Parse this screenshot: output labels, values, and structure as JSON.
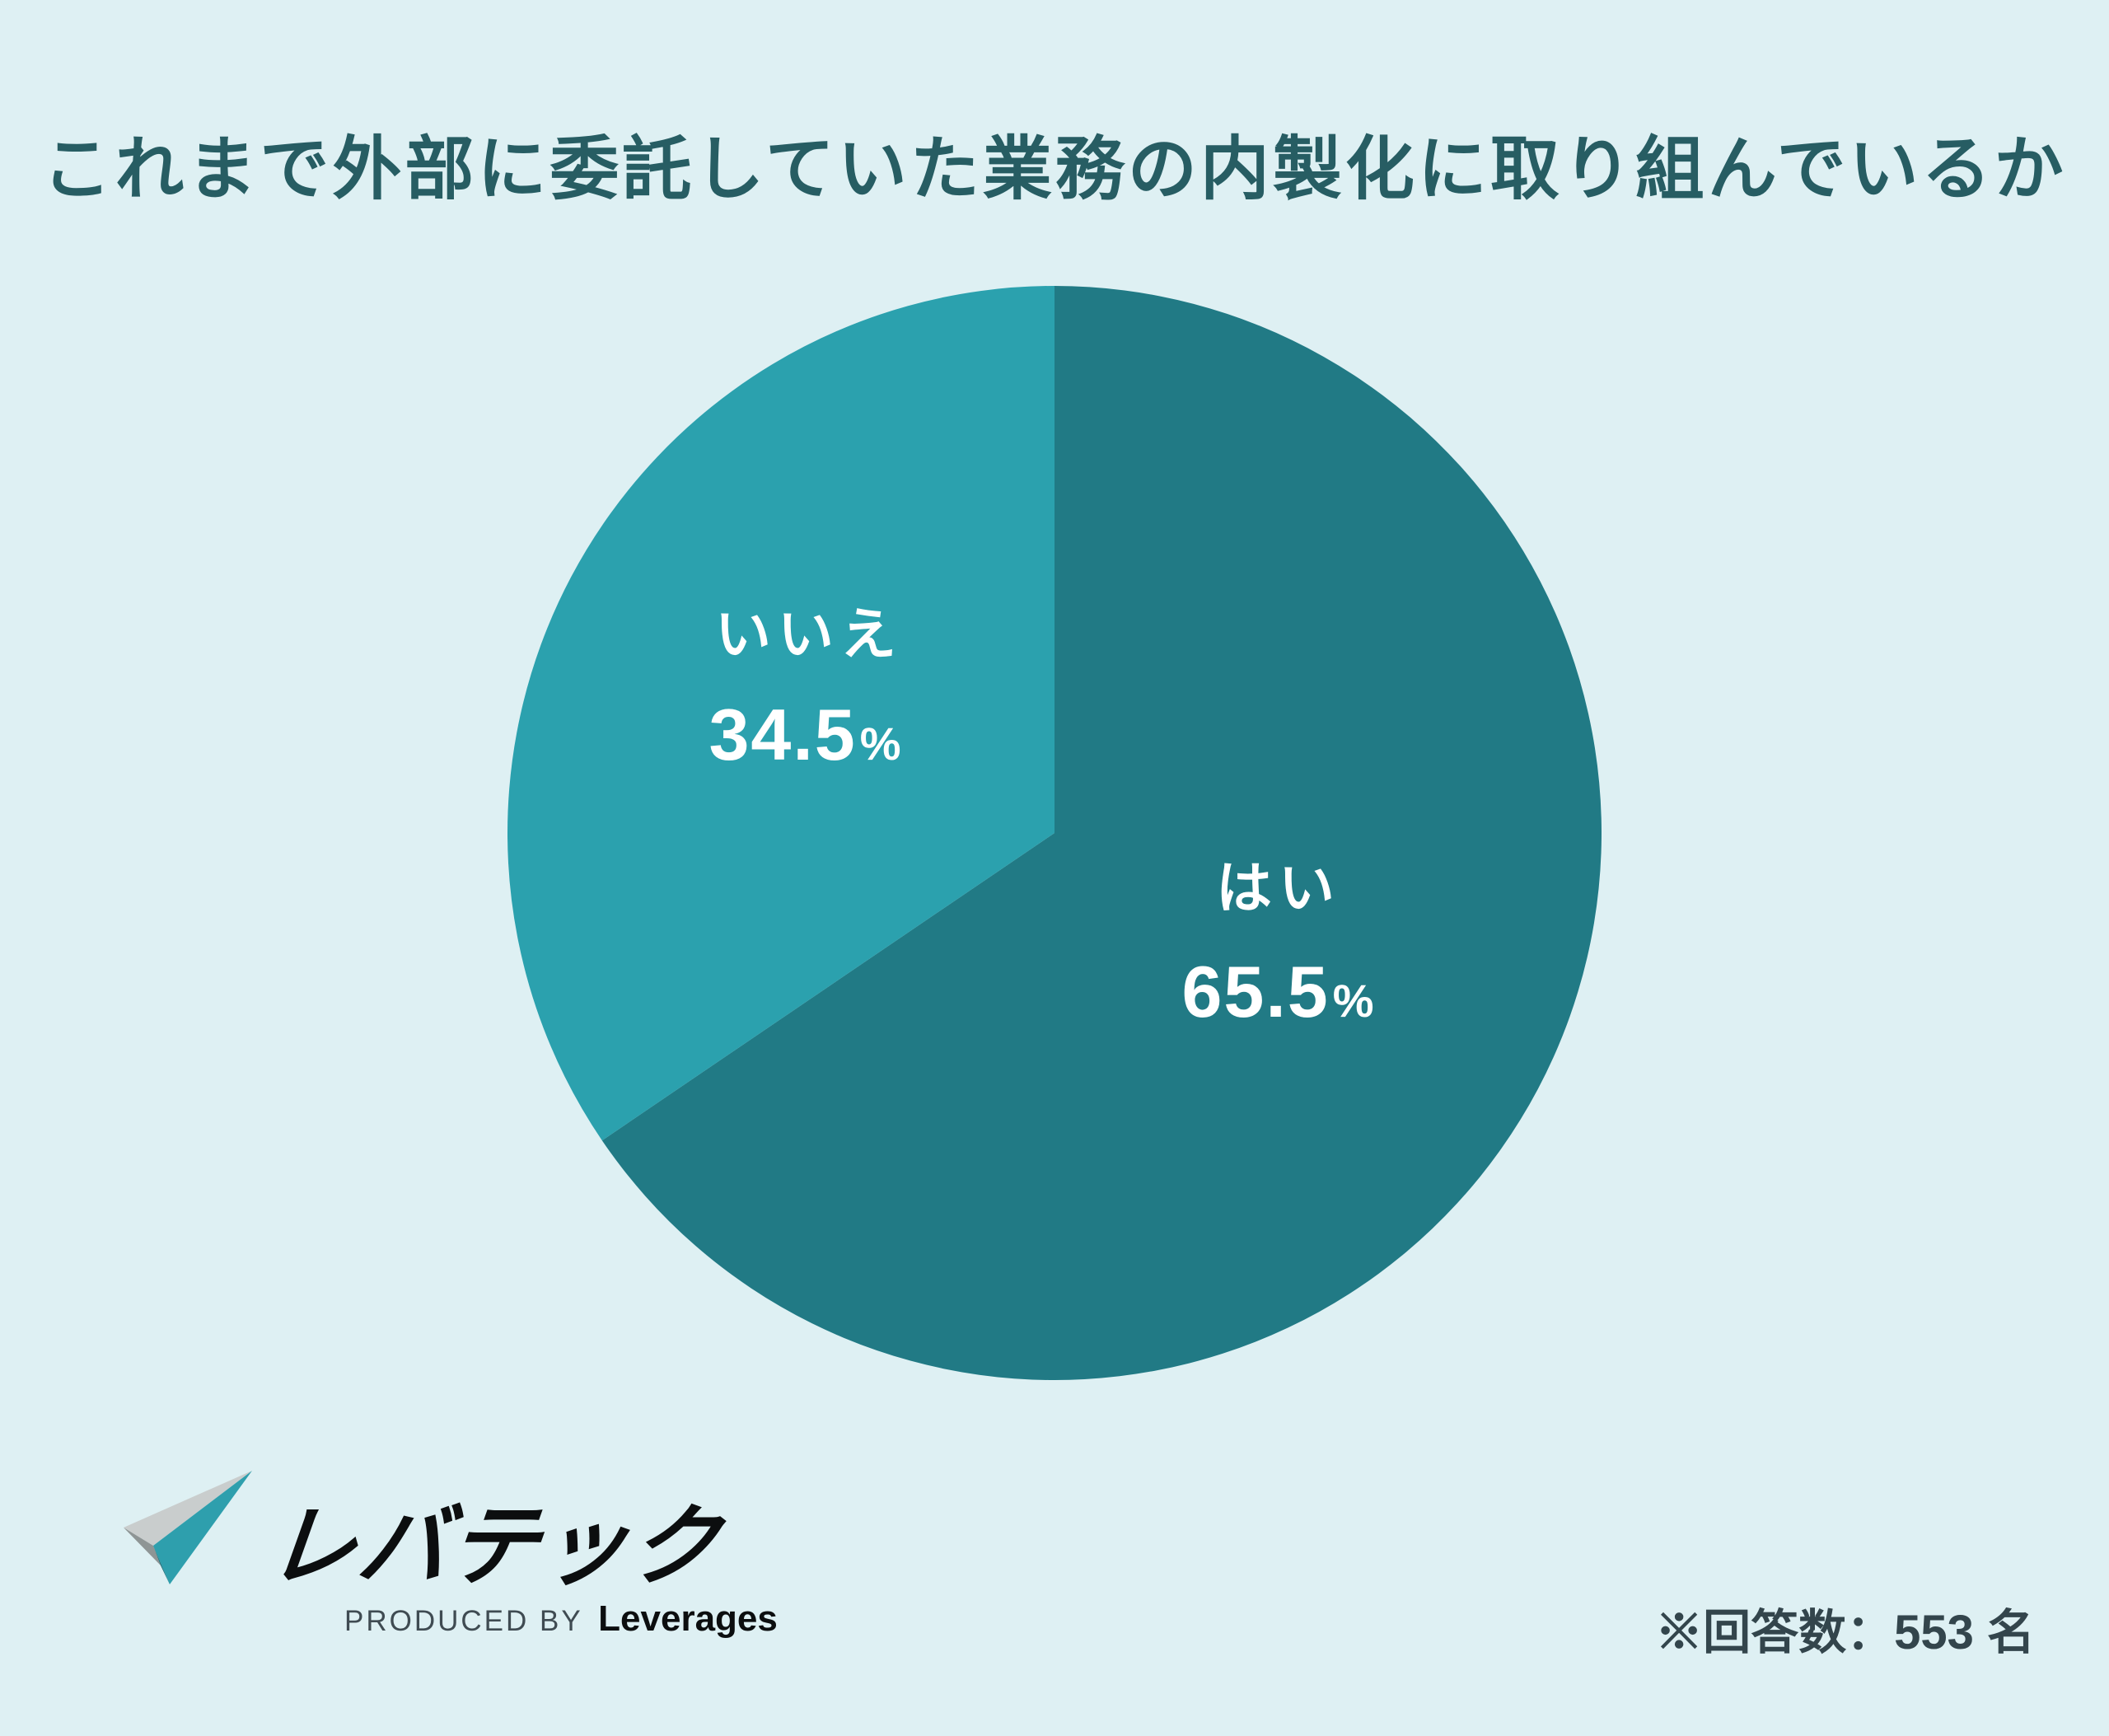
{
  "title": "これまで外部に委託していた業務の内製化に取り組んでいるか",
  "chart_data": {
    "type": "pie",
    "title": "これまで外部に委託していた業務の内製化に取り組んでいるか",
    "unit": "%",
    "start_angle_deg": 0,
    "direction": "clockwise",
    "slices": [
      {
        "label": "はい",
        "value": 65.5,
        "color": "#217A85"
      },
      {
        "label": "いいえ",
        "value": 34.5,
        "color": "#2BA1AE"
      }
    ],
    "legend_position": "none",
    "data_labels": "inside"
  },
  "footer": {
    "logo_text": "レバテック",
    "produced_by": "PRODUCED BY",
    "company": "Leverages",
    "note": "※回答数：553 名"
  },
  "colors": {
    "background": "#DEF0F3",
    "title_text": "#275D63",
    "slice_yes": "#217A85",
    "slice_no": "#2BA1AE",
    "pie_label_text": "#FFFFFF",
    "note_text": "#33454C",
    "logo_face_light_gray": "#C9CDCD",
    "logo_face_mid_gray": "#8E9595",
    "logo_face_teal": "#2E9FAD",
    "logo_face_dark_teal": "#1C6B75"
  }
}
